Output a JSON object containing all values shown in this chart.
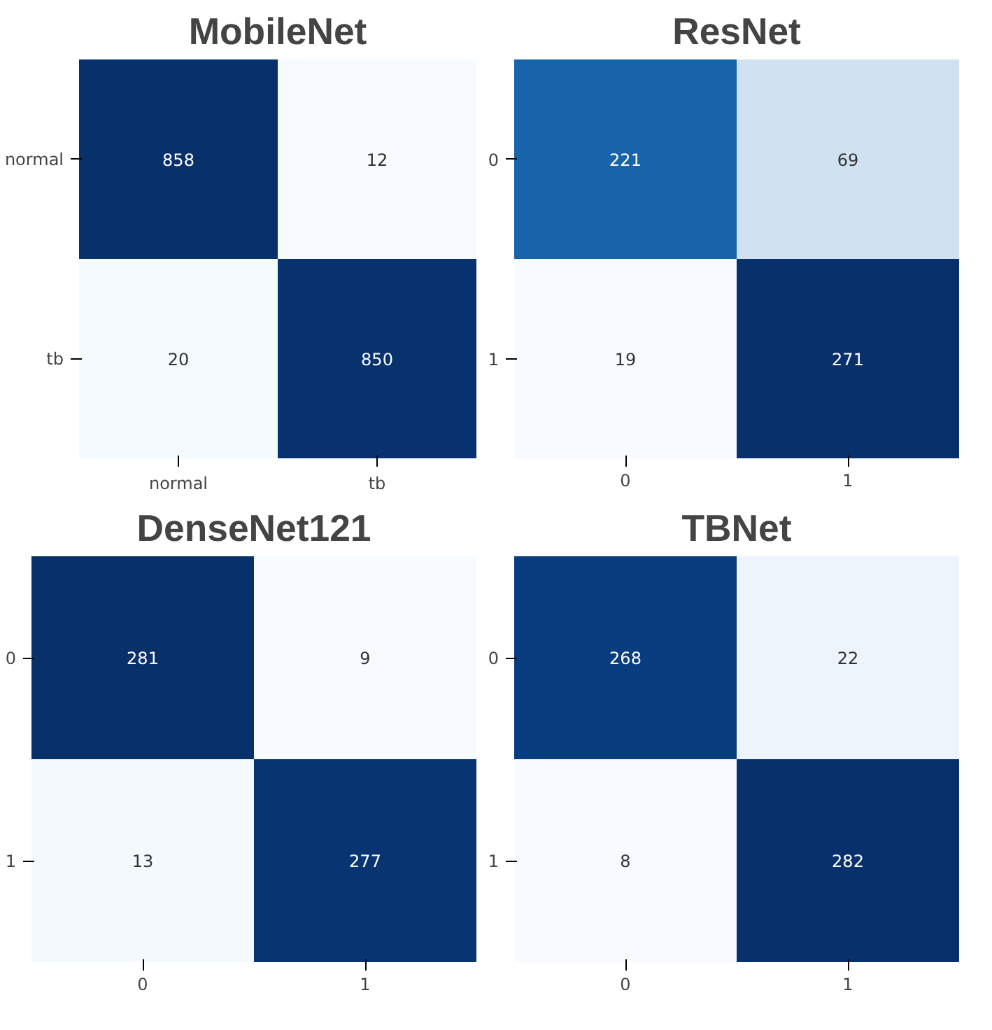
{
  "chart_data": [
    {
      "type": "heatmap",
      "title": "MobileNet",
      "categories": [
        "normal",
        "tb"
      ],
      "y_categories": [
        "normal",
        "tb"
      ],
      "cells": [
        [
          858,
          12
        ],
        [
          20,
          850
        ]
      ],
      "data_labels": true
    },
    {
      "type": "heatmap",
      "title": "ResNet",
      "categories": [
        "0",
        "1"
      ],
      "y_categories": [
        "0",
        "1"
      ],
      "cells": [
        [
          221,
          69
        ],
        [
          19,
          271
        ]
      ],
      "data_labels": true
    },
    {
      "type": "heatmap",
      "title": "DenseNet121",
      "categories": [
        "0",
        "1"
      ],
      "y_categories": [
        "0",
        "1"
      ],
      "cells": [
        [
          281,
          9
        ],
        [
          13,
          277
        ]
      ],
      "data_labels": true
    },
    {
      "type": "heatmap",
      "title": "TBNet",
      "categories": [
        "0",
        "1"
      ],
      "y_categories": [
        "0",
        "1"
      ],
      "cells": [
        [
          268,
          22
        ],
        [
          8,
          282
        ]
      ],
      "data_labels": true
    }
  ]
}
